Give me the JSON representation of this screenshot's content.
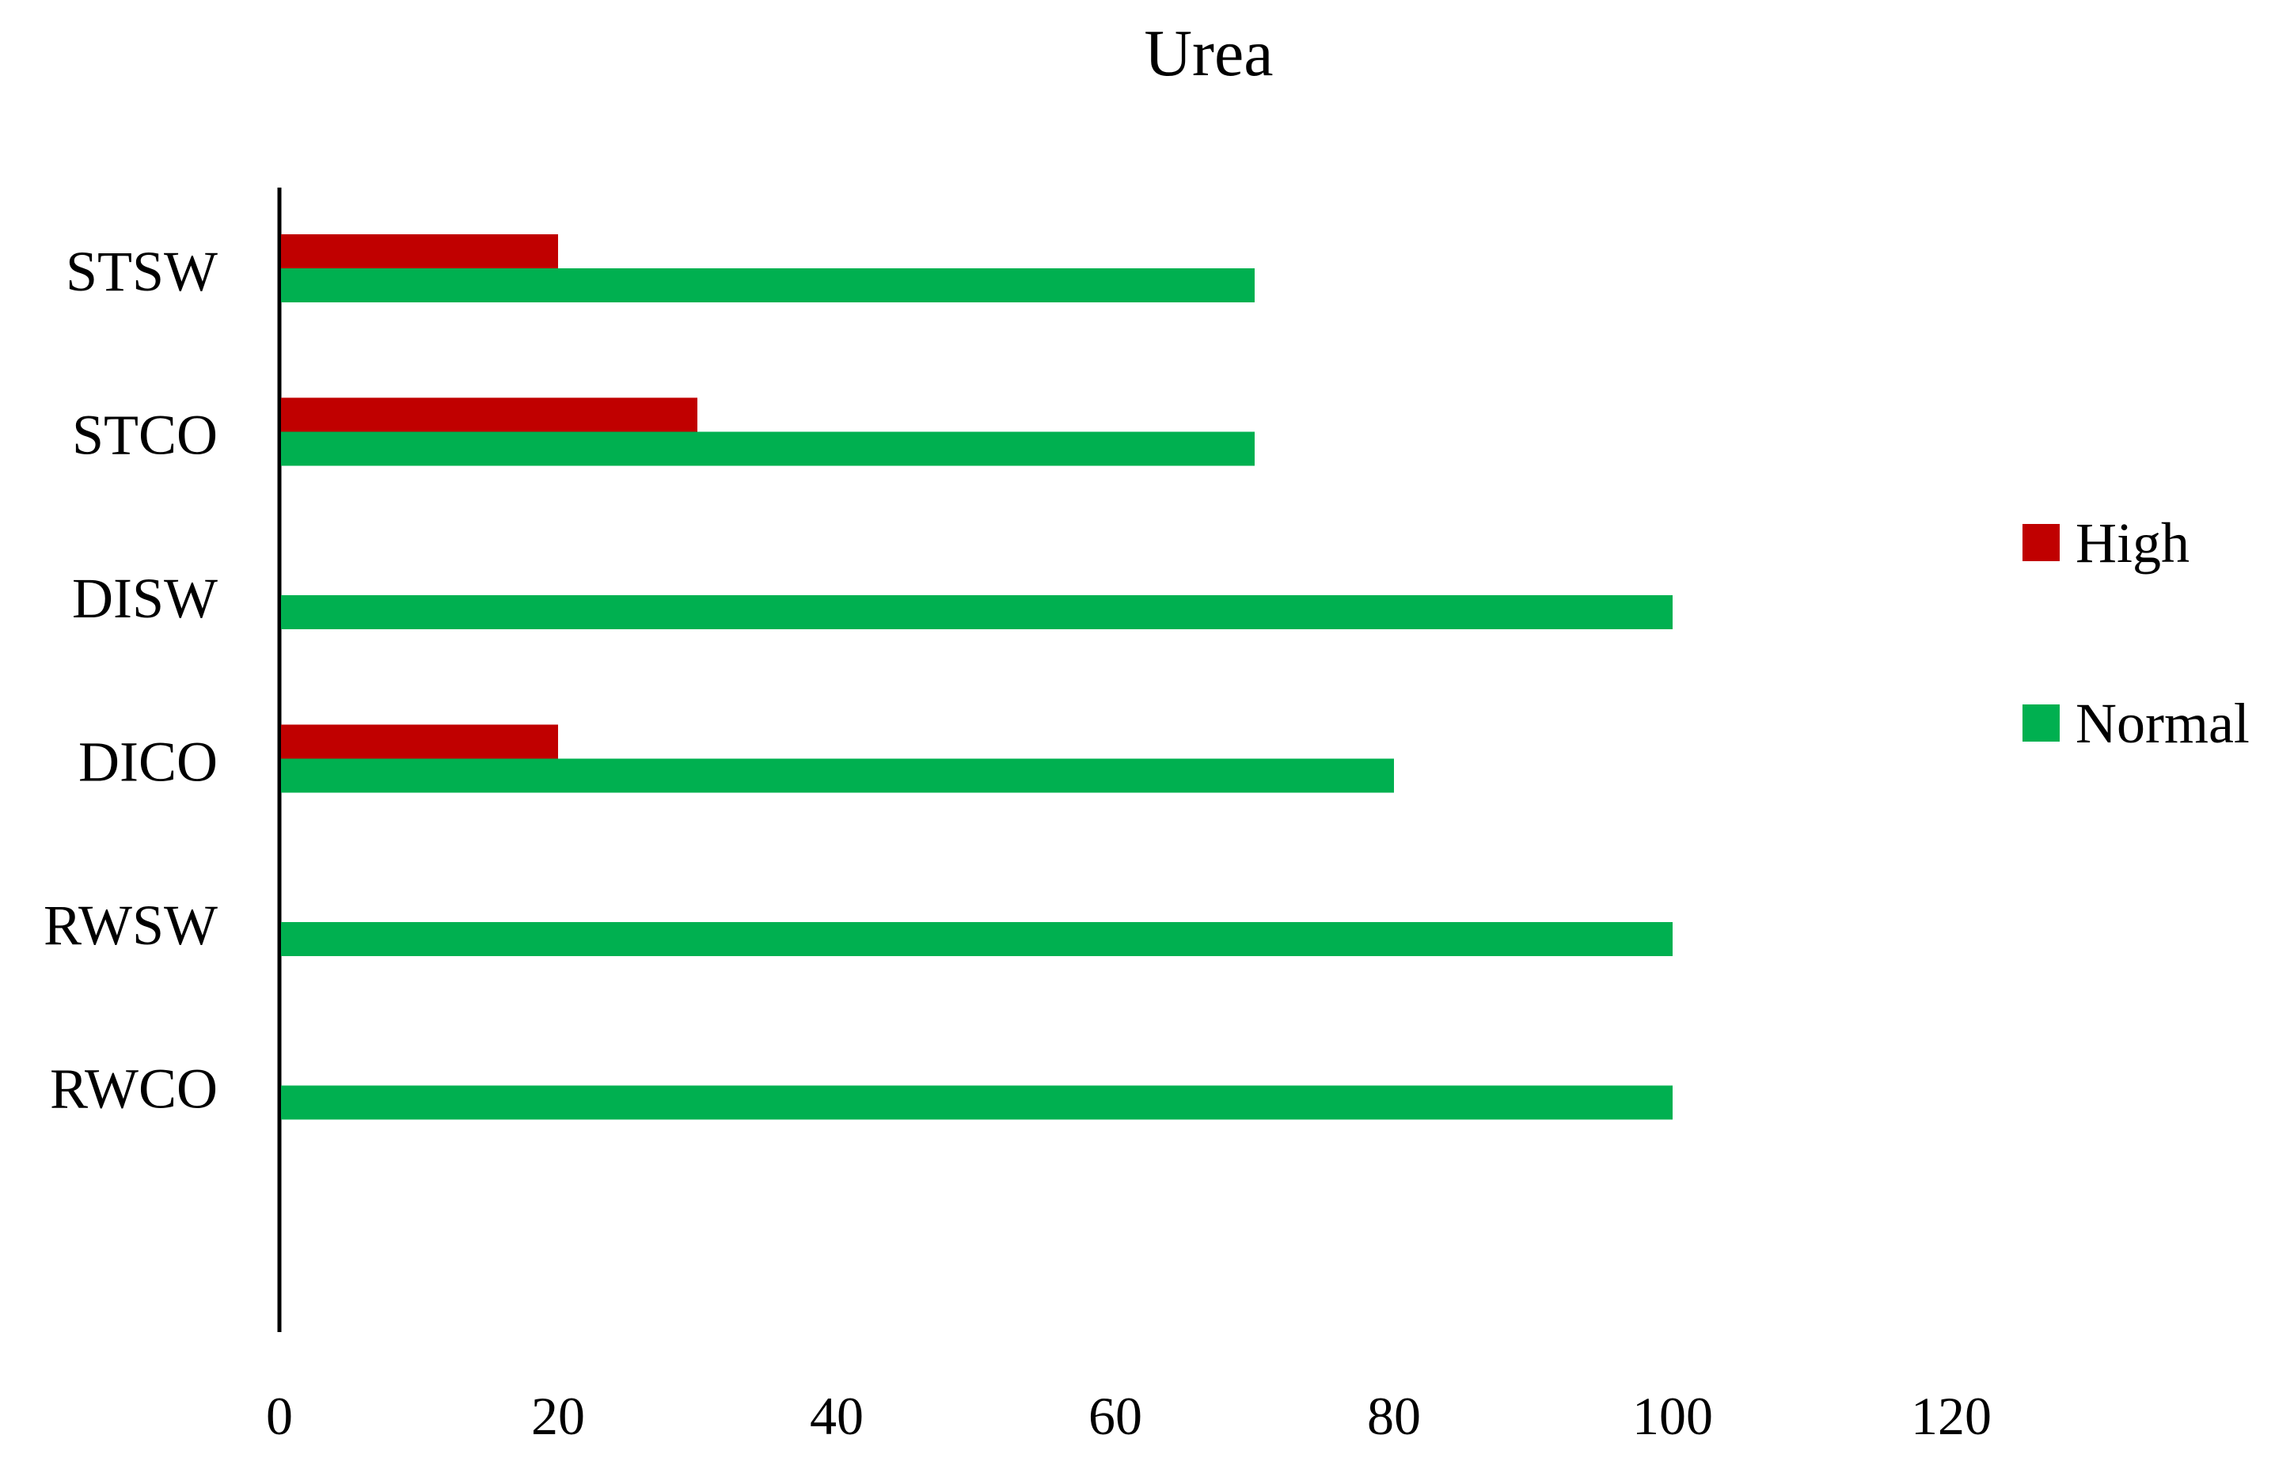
{
  "chart_data": {
    "type": "bar",
    "orientation": "horizontal",
    "title": "Urea",
    "xlabel": "",
    "ylabel": "",
    "categories": [
      "STSW",
      "STCO",
      "DISW",
      "DICO",
      "RWSW",
      "RWCO"
    ],
    "series": [
      {
        "name": "High",
        "color": "#c00000",
        "values": [
          20,
          30,
          0,
          20,
          0,
          0
        ]
      },
      {
        "name": "Normal",
        "color": "#00b050",
        "values": [
          70,
          70,
          100,
          80,
          100,
          100
        ]
      }
    ],
    "xlim": [
      0,
      120
    ],
    "xticks": [
      "0",
      "20",
      "40",
      "60",
      "80",
      "100",
      "120"
    ],
    "grid": false,
    "legend_position": "right"
  }
}
